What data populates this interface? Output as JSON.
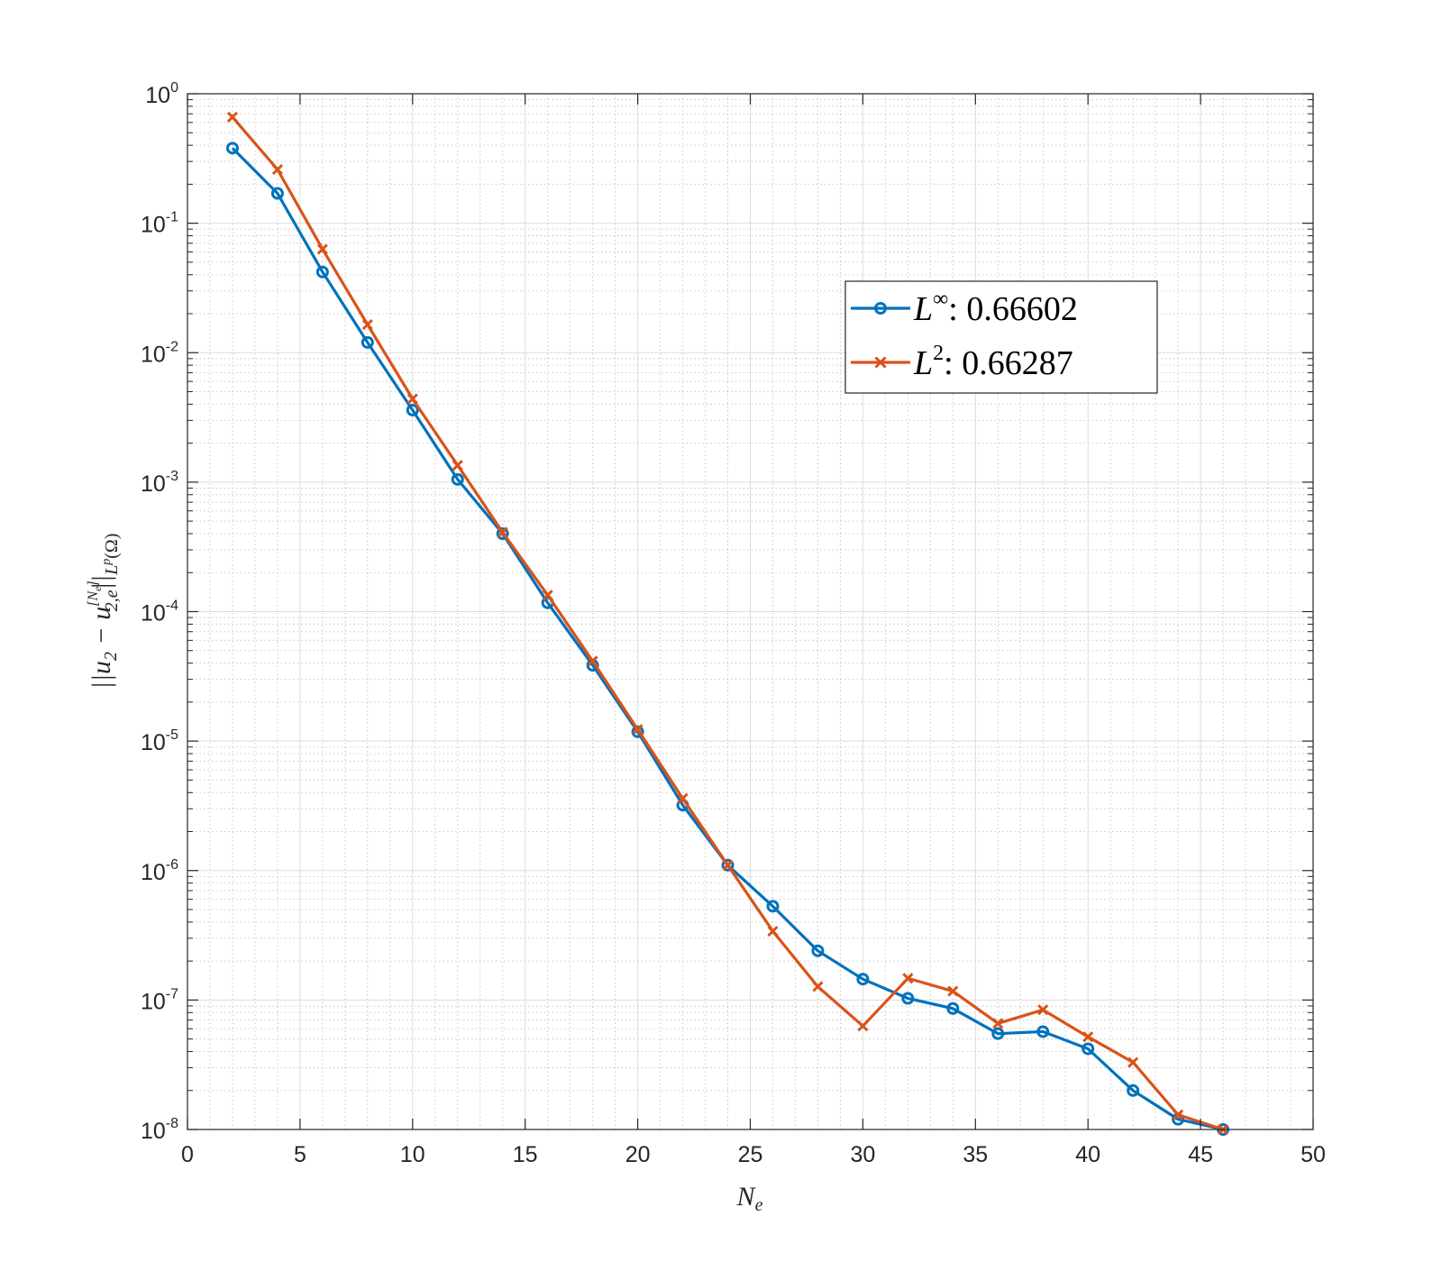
{
  "chart_data": {
    "type": "line",
    "title": "",
    "xlabel": "N",
    "xlabel_sub": "e",
    "ylabel_parts": {
      "open": "||u",
      "sub1": "2",
      "minus": " − u",
      "sup": "[N",
      "sup_sub": "e",
      "sup_close": "]",
      "sub2": "2,e",
      "close": "||",
      "norm_sub": "L",
      "norm_sup": "p",
      "norm_arg": "(Ω)"
    },
    "xlim": [
      0,
      50
    ],
    "ylim": [
      1e-08,
      1
    ],
    "yscale": "log",
    "grid": "on (major and minor)",
    "legend_position": "top-right",
    "x_ticks": [
      "0",
      "5",
      "10",
      "15",
      "20",
      "25",
      "30",
      "35",
      "40",
      "45",
      "50"
    ],
    "y_ticks": [
      {
        "base": "10",
        "exp": "0"
      },
      {
        "base": "10",
        "exp": "-1"
      },
      {
        "base": "10",
        "exp": "-2"
      },
      {
        "base": "10",
        "exp": "-3"
      },
      {
        "base": "10",
        "exp": "-4"
      },
      {
        "base": "10",
        "exp": "-5"
      },
      {
        "base": "10",
        "exp": "-6"
      },
      {
        "base": "10",
        "exp": "-7"
      },
      {
        "base": "10",
        "exp": "-8"
      }
    ],
    "x": [
      2,
      4,
      6,
      8,
      10,
      12,
      14,
      16,
      18,
      20,
      22,
      24,
      26,
      28,
      30,
      32,
      34,
      36,
      38,
      40,
      42,
      44,
      46
    ],
    "series": [
      {
        "name": "L",
        "name_sup": "∞",
        "value_text": "0.66602",
        "color": "#0072BD",
        "marker": "circle",
        "values": [
          0.38,
          0.17,
          0.042,
          0.012,
          0.0036,
          0.00105,
          0.0004,
          0.000117,
          3.85e-05,
          1.18e-05,
          3.2e-06,
          1.1e-06,
          5.3e-07,
          2.4e-07,
          1.45e-07,
          1.03e-07,
          8.6e-08,
          5.5e-08,
          5.7e-08,
          4.2e-08,
          2e-08,
          1.2e-08,
          1e-08
        ]
      },
      {
        "name": "L",
        "name_sup": "2",
        "value_text": "0.66287",
        "color": "#D95319",
        "marker": "x",
        "values": [
          0.66,
          0.26,
          0.063,
          0.0165,
          0.0044,
          0.00135,
          0.00041,
          0.000134,
          4.15e-05,
          1.23e-05,
          3.6e-06,
          1.1e-06,
          3.4e-07,
          1.27e-07,
          6.3e-08,
          1.47e-07,
          1.17e-07,
          6.6e-08,
          8.4e-08,
          5.2e-08,
          3.3e-08,
          1.3e-08,
          1e-08
        ]
      }
    ]
  }
}
